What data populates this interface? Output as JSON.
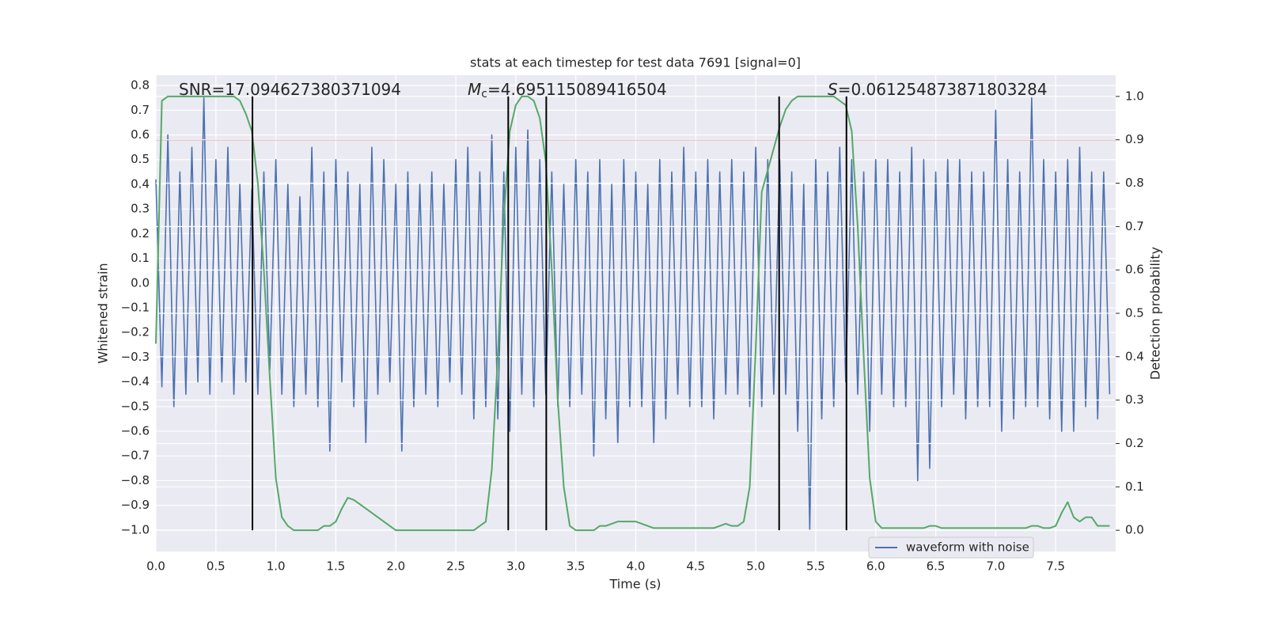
{
  "chart_data": {
    "type": "line",
    "title": "stats at each timestep for test data 7691 [signal=0]",
    "xlabel": "Time (s)",
    "ylabel": "Whitened strain",
    "y2label": "Detection probability",
    "annotations": [
      {
        "text": "SNR=17.094627380371094"
      },
      {
        "symbol": "M",
        "sub": "c",
        "text": "=4.695115089416504"
      },
      {
        "symbol": "S",
        "text": "=0.061254873871803284"
      }
    ],
    "xlim": [
      0,
      8.0
    ],
    "ylim": [
      -1.087,
      0.842
    ],
    "y2lim": [
      -0.049,
      1.049
    ],
    "xticks": [
      {
        "value": 0,
        "label": "0.0"
      },
      0.5,
      {
        "value": 1,
        "label": "1.0"
      },
      1.5,
      {
        "value": 2,
        "label": "2.0"
      },
      2.5,
      {
        "value": 3,
        "label": "3.0"
      },
      3.5,
      {
        "value": 4,
        "label": "4.0"
      },
      4.5,
      {
        "value": 5,
        "label": "5.0"
      },
      5.5,
      {
        "value": 6,
        "label": "6.0"
      },
      6.5,
      {
        "value": 7,
        "label": "7.0"
      },
      7.5
    ],
    "yticks": [
      0.8,
      0.7,
      0.6,
      0.5,
      0.4,
      0.3,
      0.2,
      0.1,
      {
        "value": 0,
        "label": "0.0"
      },
      {
        "value": -0.1,
        "label": "−0.1"
      },
      {
        "value": -0.2,
        "label": "−0.2"
      },
      {
        "value": -0.3,
        "label": "−0.3"
      },
      {
        "value": -0.4,
        "label": "−0.4"
      },
      {
        "value": -0.5,
        "label": "−0.5"
      },
      {
        "value": -0.6,
        "label": "−0.6"
      },
      {
        "value": -0.7,
        "label": "−0.7"
      },
      {
        "value": -0.8,
        "label": "−0.8"
      },
      {
        "value": -0.9,
        "label": "−0.9"
      },
      {
        "value": -1,
        "label": "−1.0"
      }
    ],
    "y2ticks": [
      {
        "value": 0,
        "label": "0.0"
      },
      0.1,
      0.2,
      0.3,
      0.4,
      0.5,
      0.6,
      0.7,
      0.8,
      0.9,
      {
        "value": 1,
        "label": "1.0"
      }
    ],
    "grid": true,
    "legend": "lower right",
    "hline": {
      "y2": 0.9,
      "color": "#c44e52"
    },
    "vlines": {
      "x": [
        0.805,
        2.937,
        3.254,
        5.195,
        5.756
      ],
      "y2": [
        0,
        1
      ],
      "color": "#000000"
    },
    "x": [
      0,
      0.05,
      0.1,
      0.15,
      0.2,
      0.25,
      0.3,
      0.35,
      0.4,
      0.45,
      0.5,
      0.55,
      0.6,
      0.65,
      0.7,
      0.75,
      0.8,
      0.85,
      0.9,
      0.95,
      1,
      1.05,
      1.1,
      1.15,
      1.2,
      1.25,
      1.3,
      1.35,
      1.4,
      1.45,
      1.5,
      1.55,
      1.6,
      1.65,
      1.7,
      1.75,
      1.8,
      1.85,
      1.9,
      1.95,
      2,
      2.05,
      2.1,
      2.15,
      2.2,
      2.25,
      2.3,
      2.35,
      2.4,
      2.45,
      2.5,
      2.55,
      2.6,
      2.65,
      2.7,
      2.75,
      2.8,
      2.85,
      2.9,
      2.95,
      3,
      3.05,
      3.1,
      3.15,
      3.2,
      3.25,
      3.3,
      3.35,
      3.4,
      3.45,
      3.5,
      3.55,
      3.6,
      3.65,
      3.7,
      3.75,
      3.8,
      3.85,
      3.9,
      3.95,
      4,
      4.05,
      4.1,
      4.15,
      4.2,
      4.25,
      4.3,
      4.35,
      4.4,
      4.45,
      4.5,
      4.55,
      4.6,
      4.65,
      4.7,
      4.75,
      4.8,
      4.85,
      4.9,
      4.95,
      5,
      5.05,
      5.1,
      5.15,
      5.2,
      5.25,
      5.3,
      5.35,
      5.4,
      5.45,
      5.5,
      5.55,
      5.6,
      5.65,
      5.7,
      5.75,
      5.8,
      5.85,
      5.9,
      5.95,
      6,
      6.05,
      6.1,
      6.15,
      6.2,
      6.25,
      6.3,
      6.35,
      6.4,
      6.45,
      6.5,
      6.55,
      6.6,
      6.65,
      6.7,
      6.75,
      6.8,
      6.85,
      6.9,
      6.95,
      7,
      7.05,
      7.1,
      7.15,
      7.2,
      7.25,
      7.3,
      7.35,
      7.4,
      7.45,
      7.5,
      7.55,
      7.6,
      7.65,
      7.7,
      7.75,
      7.8,
      7.85,
      7.9,
      7.95
    ],
    "series": [
      {
        "name": "waveform with noise",
        "color": "#4c72b0",
        "axis": "y",
        "values": [
          0.42,
          -0.42,
          0.6,
          -0.5,
          0.45,
          -0.45,
          0.55,
          -0.4,
          0.75,
          -0.45,
          0.5,
          -0.4,
          0.55,
          -0.45,
          0.4,
          -0.4,
          0.38,
          -0.45,
          0.45,
          -0.35,
          0.5,
          -0.45,
          0.4,
          -0.5,
          0.35,
          -0.45,
          0.55,
          -0.5,
          0.45,
          -0.68,
          0.5,
          -0.4,
          0.45,
          -0.5,
          0.4,
          -0.65,
          0.55,
          -0.45,
          0.5,
          -0.4,
          0.4,
          -0.68,
          0.45,
          -0.5,
          0.4,
          -0.45,
          0.45,
          -0.5,
          0.4,
          -0.4,
          0.5,
          -0.45,
          0.55,
          -0.55,
          0.45,
          -0.5,
          0.6,
          -0.55,
          0.45,
          -0.6,
          0.55,
          -0.45,
          0.62,
          -0.5,
          0.5,
          -0.45,
          0.45,
          -0.5,
          0.4,
          -0.5,
          0.5,
          -0.45,
          0.45,
          -0.7,
          0.5,
          -0.55,
          0.4,
          -0.65,
          0.5,
          -0.5,
          0.45,
          -0.5,
          0.4,
          -0.65,
          0.5,
          -0.55,
          0.45,
          -0.45,
          0.55,
          -0.5,
          0.45,
          -0.5,
          0.5,
          -0.55,
          0.45,
          -0.45,
          0.5,
          -0.45,
          0.45,
          -0.5,
          0.55,
          -0.5,
          0.5,
          -0.45,
          0.5,
          -0.45,
          0.45,
          -0.6,
          0.4,
          -1.0,
          0.5,
          -0.55,
          0.45,
          -0.5,
          0.55,
          -0.4,
          0.5,
          -0.45,
          0.45,
          -0.6,
          0.5,
          -0.45,
          0.5,
          -0.5,
          0.45,
          -0.5,
          0.55,
          -0.8,
          0.5,
          -0.75,
          0.45,
          -0.5,
          0.5,
          -0.45,
          0.5,
          -0.55,
          0.45,
          -0.5,
          0.45,
          -0.5,
          0.7,
          -0.6,
          0.5,
          -0.55,
          0.45,
          -0.5,
          0.75,
          -0.5,
          0.5,
          -0.55,
          0.45,
          -0.6,
          0.5,
          -0.6,
          0.55,
          -0.5,
          0.45,
          -0.55,
          0.45,
          -0.45
        ]
      },
      {
        "color": "#55a868",
        "axis": "y2",
        "values": [
          0.43,
          0.99,
          1.0,
          1.0,
          1.0,
          1.0,
          1.0,
          1.0,
          1.0,
          1.0,
          1.0,
          1.0,
          1.0,
          1.0,
          0.99,
          0.96,
          0.92,
          0.8,
          0.6,
          0.35,
          0.12,
          0.03,
          0.01,
          0,
          0,
          0,
          0,
          0,
          0.01,
          0.01,
          0.02,
          0.05,
          0.075,
          0.07,
          0.06,
          0.05,
          0.04,
          0.03,
          0.02,
          0.01,
          0,
          0,
          0,
          0,
          0,
          0,
          0,
          0,
          0,
          0,
          0,
          0,
          0,
          0,
          0.01,
          0.02,
          0.14,
          0.4,
          0.72,
          0.92,
          0.98,
          1.0,
          1.0,
          0.99,
          0.95,
          0.85,
          0.6,
          0.3,
          0.1,
          0.01,
          0,
          0,
          0,
          0,
          0.01,
          0.01,
          0.015,
          0.02,
          0.02,
          0.02,
          0.02,
          0.015,
          0.01,
          0.005,
          0.005,
          0.005,
          0.005,
          0.005,
          0.005,
          0.005,
          0.005,
          0.005,
          0.005,
          0.005,
          0.01,
          0.015,
          0.01,
          0.01,
          0.02,
          0.1,
          0.42,
          0.78,
          0.83,
          0.88,
          0.93,
          0.97,
          0.99,
          1.0,
          1.0,
          1.0,
          1.0,
          1.0,
          1.0,
          1.0,
          0.99,
          0.98,
          0.92,
          0.7,
          0.4,
          0.12,
          0.02,
          0.005,
          0.005,
          0.005,
          0.005,
          0.005,
          0.005,
          0.005,
          0.005,
          0.01,
          0.01,
          0.005,
          0.005,
          0.005,
          0.005,
          0.005,
          0.005,
          0.005,
          0.005,
          0.005,
          0.005,
          0.005,
          0.005,
          0.005,
          0.005,
          0.005,
          0.01,
          0.01,
          0.005,
          0.005,
          0.01,
          0.04,
          0.065,
          0.03,
          0.02,
          0.03,
          0.03,
          0.01,
          0.01,
          0.01
        ]
      }
    ]
  }
}
